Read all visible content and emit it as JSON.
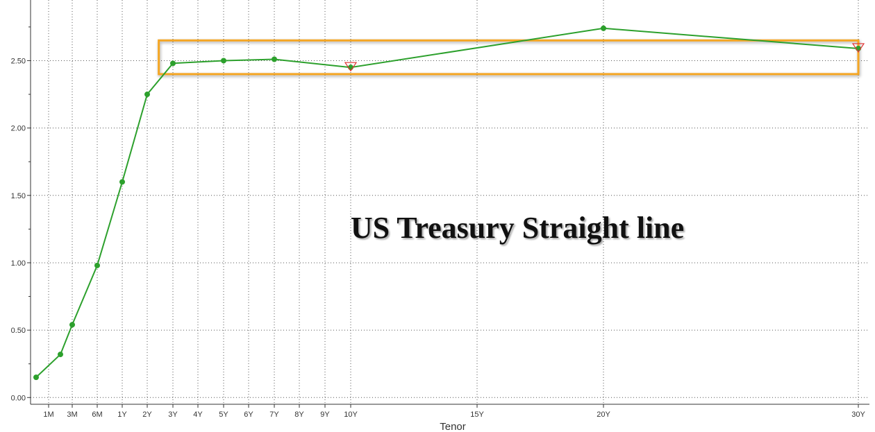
{
  "chart_data": {
    "type": "line",
    "title": "",
    "xlabel": "Tenor",
    "ylabel": "",
    "annotation": "US Treasury Straight line",
    "grid": true,
    "x_ticks": [
      {
        "label": "1M",
        "years": 0.0833
      },
      {
        "label": "3M",
        "years": 0.25
      },
      {
        "label": "6M",
        "years": 0.5
      },
      {
        "label": "1Y",
        "years": 1
      },
      {
        "label": "2Y",
        "years": 2
      },
      {
        "label": "3Y",
        "years": 3
      },
      {
        "label": "4Y",
        "years": 4
      },
      {
        "label": "5Y",
        "years": 5
      },
      {
        "label": "6Y",
        "years": 6
      },
      {
        "label": "7Y",
        "years": 7
      },
      {
        "label": "8Y",
        "years": 8
      },
      {
        "label": "9Y",
        "years": 9
      },
      {
        "label": "10Y",
        "years": 10
      },
      {
        "label": "15Y",
        "years": 15
      },
      {
        "label": "20Y",
        "years": 20
      },
      {
        "label": "30Y",
        "years": 30
      }
    ],
    "y_ticks": [
      "0.00",
      "0.50",
      "1.00",
      "1.50",
      "2.00",
      "2.50"
    ],
    "ylim": [
      -0.05,
      2.95
    ],
    "series": [
      {
        "color": "#2ca02c",
        "points": [
          {
            "years": 0.0,
            "value": 0.15
          },
          {
            "years": 0.1667,
            "value": 0.32
          },
          {
            "years": 0.25,
            "value": 0.54
          },
          {
            "years": 0.5,
            "value": 0.98
          },
          {
            "years": 1,
            "value": 1.6
          },
          {
            "years": 2,
            "value": 2.25
          },
          {
            "years": 3,
            "value": 2.48
          },
          {
            "years": 5,
            "value": 2.5
          },
          {
            "years": 7,
            "value": 2.51
          },
          {
            "years": 10,
            "value": 2.45
          },
          {
            "years": 20,
            "value": 2.74
          },
          {
            "years": 30,
            "value": 2.59
          }
        ]
      }
    ],
    "markers": [
      {
        "years": 10,
        "value": 2.45,
        "shape": "triangle-down",
        "color": "#e03030"
      },
      {
        "years": 30,
        "value": 2.59,
        "shape": "triangle-down",
        "color": "#e03030"
      }
    ],
    "highlight_box": {
      "color": "#f5a623",
      "years_from": 2.45,
      "years_to": 30.25,
      "value_from": 2.4,
      "value_to": 2.65
    }
  }
}
